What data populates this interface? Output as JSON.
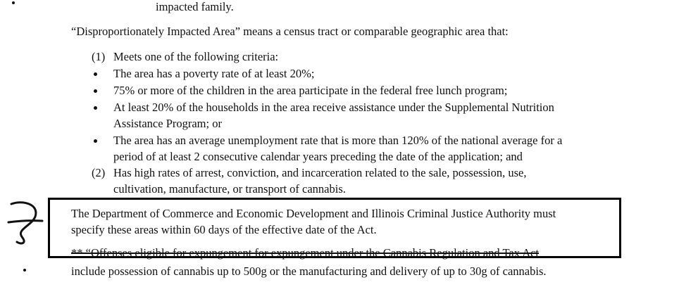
{
  "document": {
    "top_fragment": "impacted family.",
    "definition_intro": "“Disproportionately Impacted Area” means a census tract or comparable geographic area that:",
    "criterion_1": {
      "number": "(1)",
      "text": "Meets one of the following criteria:"
    },
    "bullets": [
      "The area has a poverty rate of at least 20%;",
      "75% or more of the children in the area participate in the federal free lunch program;",
      "At least 20% of the households in the area receive assistance under the Supplemental Nutrition",
      "Assistance Program; or",
      "The area has an average unemployment rate that is more than 120% of the national average for a",
      "period of at least 2 consecutive calendar years preceding the date of the application; and"
    ],
    "criterion_2": {
      "number": "(2)",
      "line_1": "Has high rates of arrest, conviction, and incarceration related to the sale, possession, use,",
      "line_2": "cultivation, manufacture, or transport of cannabis."
    },
    "highlighted_note": {
      "line_1": "The Department of Commerce and Economic Development and Illinois Criminal Justice Authority must",
      "line_2": "specify these areas within 60 days of the effective date of the Act."
    },
    "footnote": {
      "struck_line": "** “Offenses eligible for expungement for expungement under the Cannabis Regulation and Tax Act",
      "line_2": "include possession of cannabis up to 500g or the manufacturing and delivery of up to 30g of cannabis."
    }
  }
}
